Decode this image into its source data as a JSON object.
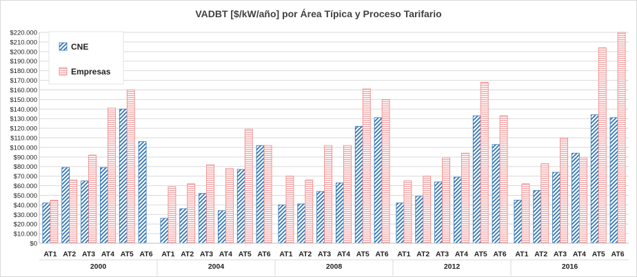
{
  "chart_data": {
    "type": "bar",
    "title": "VADBT [$/kW/año] por Área Típica y Proceso Tarifario",
    "groups": [
      "2000",
      "2004",
      "2008",
      "2012",
      "2016"
    ],
    "categories": [
      "AT1",
      "AT2",
      "AT3",
      "AT4",
      "AT5",
      "AT6"
    ],
    "ylim": [
      0,
      220000
    ],
    "ytick_step": 10000,
    "ytick_labels": [
      "$0",
      "$10.000",
      "$20.000",
      "$30.000",
      "$40.000",
      "$50.000",
      "$60.000",
      "$70.000",
      "$80.000",
      "$90.000",
      "$100.000",
      "$110.000",
      "$120.000",
      "$130.000",
      "$140.000",
      "$150.000",
      "$160.000",
      "$170.000",
      "$180.000",
      "$190.000",
      "$200.000",
      "$210.000",
      "$220.000"
    ],
    "grid": true,
    "legend_position": "top-left",
    "series": [
      {
        "name": "CNE",
        "color": "#2e75b6",
        "values": [
          [
            42000,
            79000,
            65000,
            79000,
            140000,
            106000
          ],
          [
            26000,
            36000,
            52000,
            34000,
            77000,
            102000
          ],
          [
            40000,
            41000,
            54000,
            63000,
            122000,
            131000
          ],
          [
            42000,
            49000,
            64000,
            69000,
            133000,
            103000
          ],
          [
            45000,
            55000,
            74000,
            94000,
            134000,
            131000
          ]
        ]
      },
      {
        "name": "Empresas",
        "color": "#f4a6a6",
        "values": [
          [
            45000,
            66000,
            92000,
            141000,
            160000,
            null
          ],
          [
            59000,
            62000,
            82000,
            78000,
            119000,
            102000
          ],
          [
            70000,
            66000,
            102000,
            102000,
            161000,
            150000
          ],
          [
            65000,
            70000,
            89000,
            94000,
            168000,
            133000
          ],
          [
            62000,
            83000,
            110000,
            89000,
            204000,
            220000
          ]
        ]
      }
    ]
  }
}
